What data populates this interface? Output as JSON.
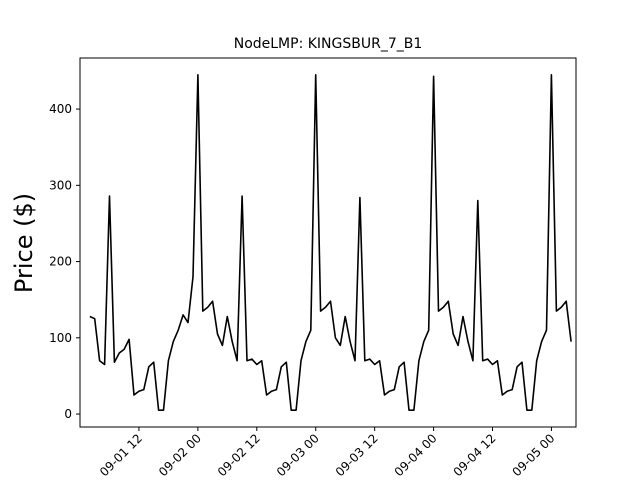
{
  "chart_data": {
    "type": "line",
    "title": "NodeLMP: KINGSBUR_7_B1",
    "xlabel": "",
    "ylabel": "Price ($)",
    "ylim": [
      -17,
      467
    ],
    "xlim": [
      "2018-09-01 00:00",
      "2018-09-05 05:00"
    ],
    "yticks": [
      0,
      100,
      200,
      300,
      400
    ],
    "xticks": [
      {
        "label": "09-01 12",
        "value": "2018-09-01 12:00"
      },
      {
        "label": "09-02 00",
        "value": "2018-09-02 00:00"
      },
      {
        "label": "09-02 12",
        "value": "2018-09-02 12:00"
      },
      {
        "label": "09-03 00",
        "value": "2018-09-03 00:00"
      },
      {
        "label": "09-03 12",
        "value": "2018-09-03 12:00"
      },
      {
        "label": "09-04 00",
        "value": "2018-09-04 00:00"
      },
      {
        "label": "09-04 12",
        "value": "2018-09-04 12:00"
      },
      {
        "label": "09-05 00",
        "value": "2018-09-05 00:00"
      }
    ],
    "grid": false,
    "line_color": "#000000",
    "series": [
      {
        "name": "",
        "x": [
          "2018-09-01 02:00",
          "2018-09-01 03:00",
          "2018-09-01 04:00",
          "2018-09-01 05:00",
          "2018-09-01 06:00",
          "2018-09-01 07:00",
          "2018-09-01 08:00",
          "2018-09-01 09:00",
          "2018-09-01 10:00",
          "2018-09-01 11:00",
          "2018-09-01 12:00",
          "2018-09-01 13:00",
          "2018-09-01 14:00",
          "2018-09-01 15:00",
          "2018-09-01 16:00",
          "2018-09-01 17:00",
          "2018-09-01 18:00",
          "2018-09-01 19:00",
          "2018-09-01 20:00",
          "2018-09-01 21:00",
          "2018-09-01 22:00",
          "2018-09-01 23:00",
          "2018-09-02 00:00",
          "2018-09-02 01:00",
          "2018-09-02 02:00",
          "2018-09-02 03:00",
          "2018-09-02 04:00",
          "2018-09-02 05:00",
          "2018-09-02 06:00",
          "2018-09-02 07:00",
          "2018-09-02 08:00",
          "2018-09-02 09:00",
          "2018-09-02 10:00",
          "2018-09-02 11:00",
          "2018-09-02 12:00",
          "2018-09-02 13:00",
          "2018-09-02 14:00",
          "2018-09-02 15:00",
          "2018-09-02 16:00",
          "2018-09-02 17:00",
          "2018-09-02 18:00",
          "2018-09-02 19:00",
          "2018-09-02 20:00",
          "2018-09-02 21:00",
          "2018-09-02 22:00",
          "2018-09-02 23:00",
          "2018-09-03 00:00",
          "2018-09-03 01:00",
          "2018-09-03 02:00",
          "2018-09-03 03:00",
          "2018-09-03 04:00",
          "2018-09-03 05:00",
          "2018-09-03 06:00",
          "2018-09-03 07:00",
          "2018-09-03 08:00",
          "2018-09-03 09:00",
          "2018-09-03 10:00",
          "2018-09-03 11:00",
          "2018-09-03 12:00",
          "2018-09-03 13:00",
          "2018-09-03 14:00",
          "2018-09-03 15:00",
          "2018-09-03 16:00",
          "2018-09-03 17:00",
          "2018-09-03 18:00",
          "2018-09-03 19:00",
          "2018-09-03 20:00",
          "2018-09-03 21:00",
          "2018-09-03 22:00",
          "2018-09-03 23:00",
          "2018-09-04 00:00",
          "2018-09-04 01:00",
          "2018-09-04 02:00",
          "2018-09-04 03:00",
          "2018-09-04 04:00",
          "2018-09-04 05:00",
          "2018-09-04 06:00",
          "2018-09-04 07:00",
          "2018-09-04 08:00",
          "2018-09-04 09:00",
          "2018-09-04 10:00",
          "2018-09-04 11:00",
          "2018-09-04 12:00",
          "2018-09-04 13:00",
          "2018-09-04 14:00",
          "2018-09-04 15:00",
          "2018-09-04 16:00",
          "2018-09-04 17:00",
          "2018-09-04 18:00",
          "2018-09-04 19:00",
          "2018-09-04 20:00",
          "2018-09-04 21:00",
          "2018-09-04 22:00",
          "2018-09-04 23:00",
          "2018-09-05 00:00",
          "2018-09-05 01:00",
          "2018-09-05 02:00",
          "2018-09-05 03:00",
          "2018-09-05 04:00"
        ],
        "values": [
          128,
          125,
          70,
          65,
          286,
          68,
          80,
          85,
          98,
          25,
          30,
          32,
          62,
          68,
          5,
          5,
          70,
          95,
          110,
          130,
          120,
          180,
          445,
          135,
          140,
          148,
          105,
          90,
          128,
          95,
          70,
          286,
          70,
          72,
          65,
          70,
          25,
          30,
          32,
          62,
          68,
          5,
          5,
          70,
          95,
          110,
          445,
          135,
          140,
          148,
          100,
          90,
          128,
          95,
          70,
          284,
          70,
          72,
          65,
          70,
          25,
          30,
          32,
          62,
          68,
          5,
          5,
          70,
          95,
          110,
          443,
          135,
          140,
          148,
          105,
          90,
          128,
          95,
          70,
          280,
          70,
          72,
          65,
          70,
          25,
          30,
          32,
          62,
          68,
          5,
          5,
          70,
          95,
          110,
          445,
          135,
          140,
          148,
          95
        ]
      }
    ]
  }
}
